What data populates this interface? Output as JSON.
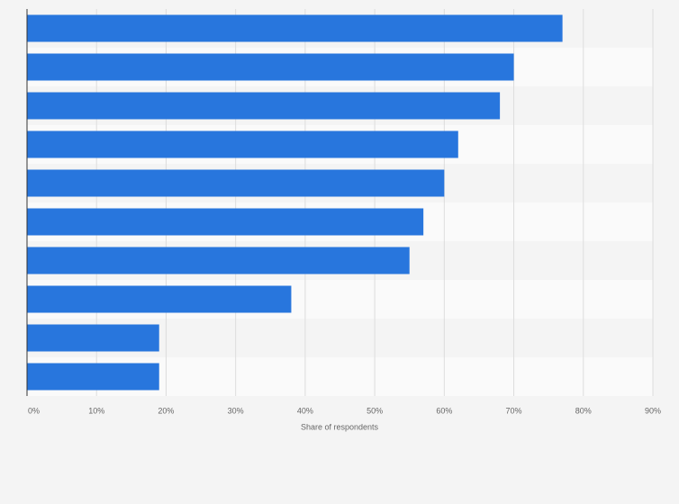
{
  "chart_data": {
    "type": "bar",
    "orientation": "horizontal",
    "categories": [
      null,
      null,
      null,
      null,
      null,
      null,
      null,
      null,
      null,
      null
    ],
    "values": [
      77,
      70,
      68,
      62,
      60,
      57,
      55,
      38,
      19,
      19
    ],
    "color": "#2876dd",
    "xlabel": "Share of respondents",
    "xlim": [
      0,
      90
    ],
    "xticks": [
      {
        "value": 0,
        "label": "0%"
      },
      {
        "value": 10,
        "label": "10%"
      },
      {
        "value": 20,
        "label": "20%"
      },
      {
        "value": 30,
        "label": "30%"
      },
      {
        "value": 40,
        "label": "40%"
      },
      {
        "value": 50,
        "label": "50%"
      },
      {
        "value": 60,
        "label": "60%"
      },
      {
        "value": 70,
        "label": "70%"
      },
      {
        "value": 80,
        "label": "80%"
      },
      {
        "value": 90,
        "label": "90%"
      }
    ],
    "grid": true
  }
}
